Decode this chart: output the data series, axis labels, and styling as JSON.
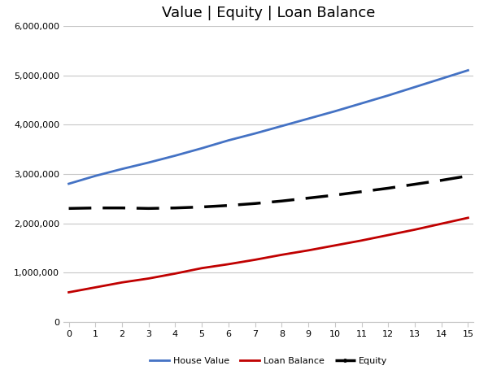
{
  "title": "Value | Equity | Loan Balance",
  "x": [
    0,
    1,
    2,
    3,
    4,
    5,
    6,
    7,
    8,
    9,
    10,
    11,
    12,
    13,
    14,
    15
  ],
  "house_value": [
    2800000,
    2960000,
    3100000,
    3230000,
    3370000,
    3520000,
    3680000,
    3820000,
    3970000,
    4120000,
    4270000,
    4430000,
    4590000,
    4760000,
    4930000,
    5100000
  ],
  "loan_balance": [
    600000,
    700000,
    800000,
    880000,
    980000,
    1090000,
    1170000,
    1260000,
    1360000,
    1450000,
    1550000,
    1650000,
    1760000,
    1870000,
    1990000,
    2110000
  ],
  "equity": [
    2300000,
    2310000,
    2310000,
    2300000,
    2310000,
    2330000,
    2360000,
    2400000,
    2450000,
    2510000,
    2570000,
    2640000,
    2710000,
    2790000,
    2870000,
    2960000
  ],
  "house_value_color": "#4472C4",
  "loan_balance_color": "#C00000",
  "equity_color": "#000000",
  "background_color": "#FFFFFF",
  "grid_color": "#C8C8C8",
  "ylim": [
    0,
    6000000
  ],
  "yticks": [
    0,
    1000000,
    2000000,
    3000000,
    4000000,
    5000000,
    6000000
  ],
  "xticks": [
    0,
    1,
    2,
    3,
    4,
    5,
    6,
    7,
    8,
    9,
    10,
    11,
    12,
    13,
    14,
    15
  ],
  "legend_labels": [
    "House Value",
    "Loan Balance",
    "Equity"
  ],
  "title_fontsize": 13,
  "tick_fontsize": 8,
  "legend_fontsize": 8,
  "line_width": 2.0,
  "dpi": 100
}
